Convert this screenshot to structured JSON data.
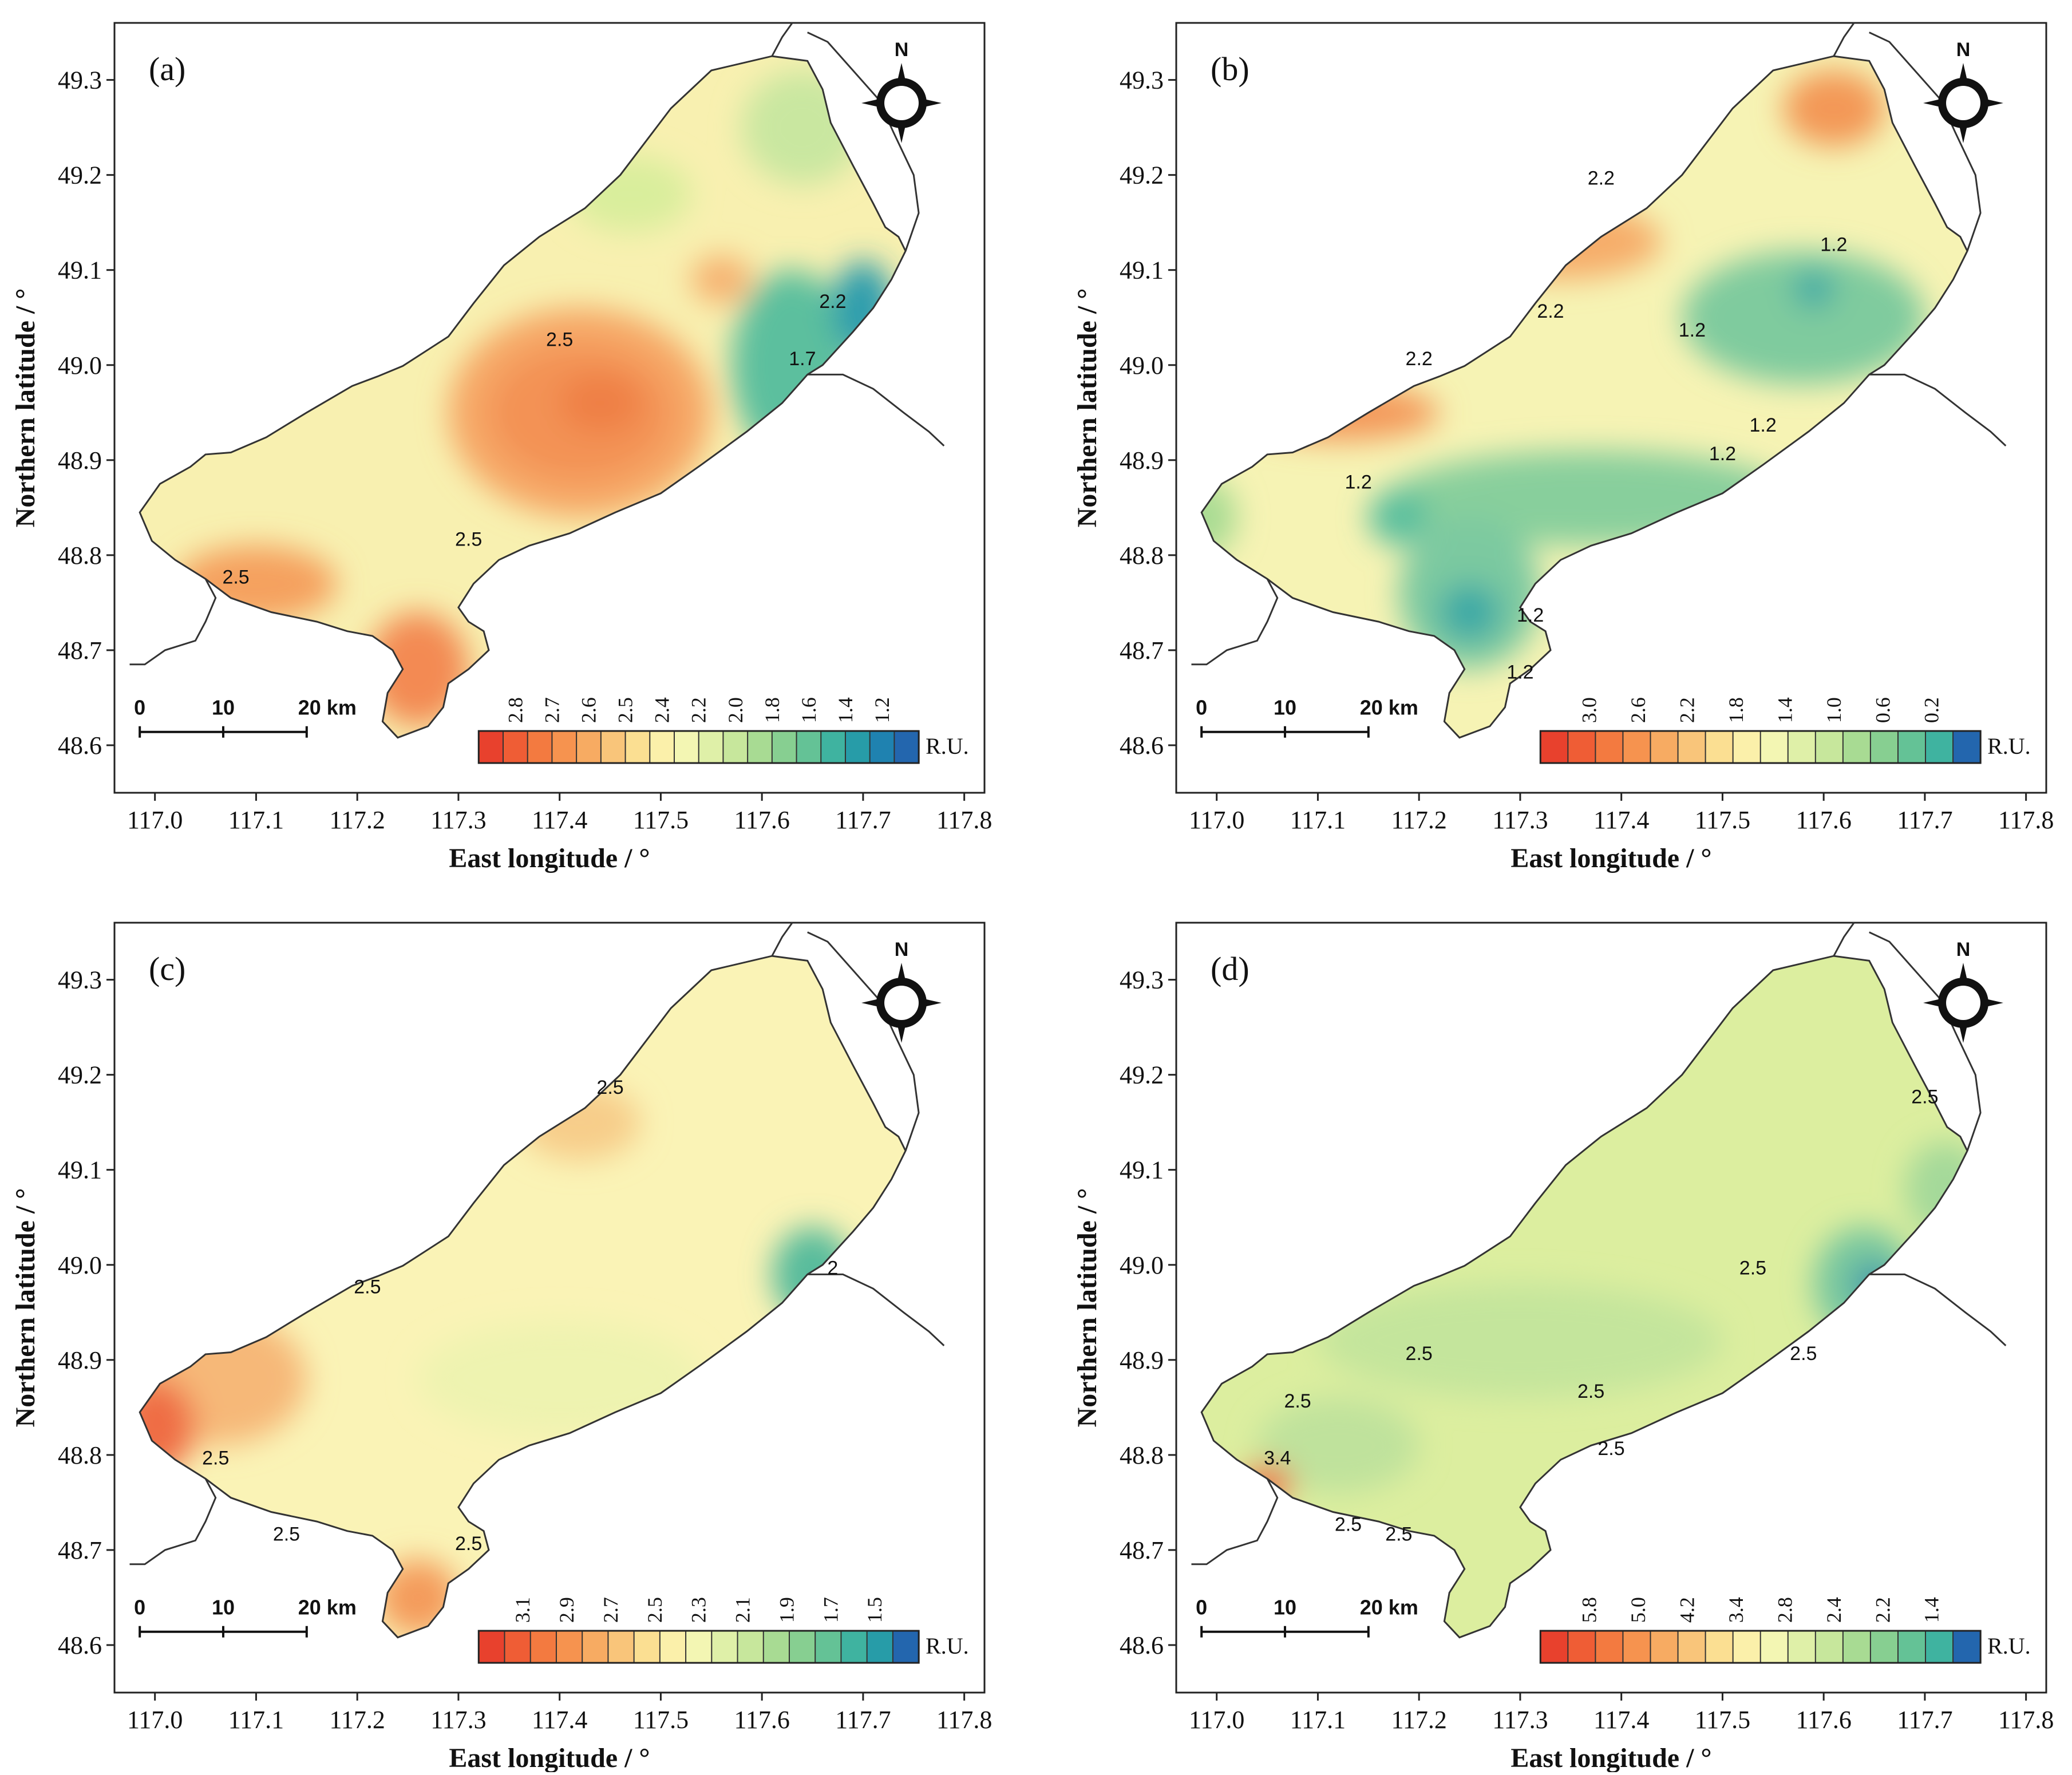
{
  "figure": {
    "axis_x_title": "East longitude / °",
    "axis_y_title": "Northern latitude / °",
    "x_ticks": [
      "117.0",
      "117.1",
      "117.2",
      "117.3",
      "117.4",
      "117.5",
      "117.6",
      "117.7",
      "117.8"
    ],
    "y_ticks": [
      "49.3",
      "49.2",
      "49.1",
      "49.0",
      "48.9",
      "48.8",
      "48.7",
      "48.6"
    ],
    "x_range": [
      116.96,
      117.82
    ],
    "y_range": [
      48.55,
      49.36
    ],
    "compass_label": "N",
    "scale_bar": {
      "labels": [
        "0",
        "10",
        "20 km"
      ]
    },
    "unit_label": "R.U."
  },
  "panels": [
    {
      "id": "a",
      "label": "(a)",
      "colorbar_ticks": [
        "2.8",
        "2.7",
        "2.6",
        "2.5",
        "2.4",
        "2.2",
        "2.0",
        "1.8",
        "1.6",
        "1.4",
        "1.2"
      ],
      "colorbar_colors": [
        "#e8412d",
        "#ef5d35",
        "#f37a40",
        "#f6934f",
        "#f7ab62",
        "#f9c57a",
        "#fbdf92",
        "#fbf0aa",
        "#f3f6b3",
        "#dff0a8",
        "#c7e79c",
        "#a8db93",
        "#87cf91",
        "#64c296",
        "#3fb3a0",
        "#279ca8",
        "#1f82b0",
        "#2366ae"
      ],
      "contour_labels": [
        "2.5",
        "2.5",
        "2.5",
        "2.2",
        "1.7"
      ],
      "base_color": "#f8f0b0",
      "blobs": [
        {
          "lon": 117.42,
          "lat": 48.95,
          "rx": 0.13,
          "ry": 0.11,
          "color": "#f6a766"
        },
        {
          "lon": 117.42,
          "lat": 48.95,
          "rx": 0.09,
          "ry": 0.07,
          "color": "#f39255"
        },
        {
          "lon": 117.44,
          "lat": 48.96,
          "rx": 0.04,
          "ry": 0.03,
          "color": "#ef7f45"
        },
        {
          "lon": 117.56,
          "lat": 49.09,
          "rx": 0.03,
          "ry": 0.025,
          "color": "#f6b170"
        },
        {
          "lon": 117.47,
          "lat": 49.18,
          "rx": 0.06,
          "ry": 0.04,
          "color": "#d9ee9c"
        },
        {
          "lon": 117.64,
          "lat": 49.25,
          "rx": 0.06,
          "ry": 0.06,
          "color": "#c9e7a0"
        },
        {
          "lon": 117.2,
          "lat": 49.11,
          "rx": 0.1,
          "ry": 0.05,
          "color": "#c9e7a0"
        },
        {
          "lon": 117.63,
          "lat": 49.0,
          "rx": 0.06,
          "ry": 0.1,
          "color": "#5bbf9e"
        },
        {
          "lon": 117.7,
          "lat": 49.06,
          "rx": 0.03,
          "ry": 0.05,
          "color": "#2f9dad"
        },
        {
          "lon": 117.1,
          "lat": 48.77,
          "rx": 0.08,
          "ry": 0.04,
          "color": "#f5a15e"
        },
        {
          "lon": 117.26,
          "lat": 48.68,
          "rx": 0.05,
          "ry": 0.06,
          "color": "#f38a52"
        }
      ]
    },
    {
      "id": "b",
      "label": "(b)",
      "colorbar_ticks": [
        "3.0",
        "2.6",
        "2.2",
        "1.8",
        "1.4",
        "1.0",
        "0.6",
        "0.2"
      ],
      "colorbar_colors": [
        "#e8412d",
        "#ef5d35",
        "#f37a40",
        "#f6934f",
        "#f7ab62",
        "#f9c57a",
        "#fbdf92",
        "#fbf0aa",
        "#f3f6b3",
        "#dff0a8",
        "#c7e79c",
        "#a8db93",
        "#87cf91",
        "#64c296",
        "#3fb3a0",
        "#2366ae"
      ],
      "contour_labels": [
        "2.2",
        "2.2",
        "2.2",
        "1.2",
        "1.2",
        "1.2",
        "1.2",
        "1.2",
        "1.2",
        "1.2"
      ],
      "base_color": "#f6f3b4",
      "blobs": [
        {
          "lon": 117.37,
          "lat": 48.86,
          "rx": 0.2,
          "ry": 0.05,
          "color": "#88cf9c"
        },
        {
          "lon": 117.25,
          "lat": 48.76,
          "rx": 0.07,
          "ry": 0.08,
          "color": "#7cc9a0"
        },
        {
          "lon": 117.58,
          "lat": 49.05,
          "rx": 0.12,
          "ry": 0.07,
          "color": "#7fcb9e"
        },
        {
          "lon": 117.25,
          "lat": 48.74,
          "rx": 0.03,
          "ry": 0.03,
          "color": "#3aa9a6"
        },
        {
          "lon": 117.59,
          "lat": 49.08,
          "rx": 0.02,
          "ry": 0.02,
          "color": "#3aa9a6"
        },
        {
          "lon": 117.34,
          "lat": 49.13,
          "rx": 0.1,
          "ry": 0.04,
          "color": "#f6ad6a"
        },
        {
          "lon": 117.12,
          "lat": 48.95,
          "rx": 0.1,
          "ry": 0.03,
          "color": "#f49a5c"
        },
        {
          "lon": 117.61,
          "lat": 49.27,
          "rx": 0.05,
          "ry": 0.04,
          "color": "#f39856"
        },
        {
          "lon": 117.18,
          "lat": 48.84,
          "rx": 0.03,
          "ry": 0.03,
          "color": "#5abf9e"
        },
        {
          "lon": 116.99,
          "lat": 48.84,
          "rx": 0.03,
          "ry": 0.04,
          "color": "#a8db93"
        }
      ]
    },
    {
      "id": "c",
      "label": "(c)",
      "colorbar_ticks": [
        "3.1",
        "2.9",
        "2.7",
        "2.5",
        "2.3",
        "2.1",
        "1.9",
        "1.7",
        "1.5"
      ],
      "colorbar_colors": [
        "#e8412d",
        "#ef5d35",
        "#f37a40",
        "#f6934f",
        "#f7ab62",
        "#f9c57a",
        "#fbdf92",
        "#fbf0aa",
        "#f3f6b3",
        "#dff0a8",
        "#c7e79c",
        "#a8db93",
        "#87cf91",
        "#64c296",
        "#3fb3a0",
        "#279ca8",
        "#2366ae"
      ],
      "contour_labels": [
        "2.5",
        "2.5",
        "2.5",
        "2.5",
        "2.5",
        "2"
      ],
      "base_color": "#faf3b6",
      "blobs": [
        {
          "lon": 117.06,
          "lat": 48.88,
          "rx": 0.09,
          "ry": 0.07,
          "color": "#f6b878"
        },
        {
          "lon": 117.0,
          "lat": 48.83,
          "rx": 0.04,
          "ry": 0.05,
          "color": "#ef6d45"
        },
        {
          "lon": 117.4,
          "lat": 48.88,
          "rx": 0.14,
          "ry": 0.06,
          "color": "#eef3b0"
        },
        {
          "lon": 117.65,
          "lat": 48.99,
          "rx": 0.04,
          "ry": 0.05,
          "color": "#58bc9c"
        },
        {
          "lon": 117.26,
          "lat": 48.65,
          "rx": 0.04,
          "ry": 0.04,
          "color": "#f49b5c"
        },
        {
          "lon": 117.42,
          "lat": 49.15,
          "rx": 0.06,
          "ry": 0.04,
          "color": "#f7cd8a"
        }
      ]
    },
    {
      "id": "d",
      "label": "(d)",
      "colorbar_ticks": [
        "5.8",
        "5.0",
        "4.2",
        "3.4",
        "2.8",
        "2.4",
        "2.2",
        "1.4"
      ],
      "colorbar_colors": [
        "#e8412d",
        "#ef5d35",
        "#f37a40",
        "#f6934f",
        "#f7ab62",
        "#f9c57a",
        "#fbdf92",
        "#fbf0aa",
        "#f3f6b3",
        "#dff0a8",
        "#c7e79c",
        "#a8db93",
        "#87cf91",
        "#64c296",
        "#3fb3a0",
        "#2366ae"
      ],
      "contour_labels": [
        "2.5",
        "2.5",
        "2.5",
        "2.5",
        "2.5",
        "2.5",
        "2.5",
        "2.5",
        "2.5",
        "3.4"
      ],
      "base_color": "#dcee9f",
      "blobs": [
        {
          "lon": 117.3,
          "lat": 48.92,
          "rx": 0.2,
          "ry": 0.06,
          "color": "#c4e59c"
        },
        {
          "lon": 117.12,
          "lat": 48.81,
          "rx": 0.08,
          "ry": 0.05,
          "color": "#bfe29c"
        },
        {
          "lon": 117.64,
          "lat": 48.98,
          "rx": 0.05,
          "ry": 0.06,
          "color": "#78c79f"
        },
        {
          "lon": 117.65,
          "lat": 48.98,
          "rx": 0.02,
          "ry": 0.02,
          "color": "#2d90ad"
        },
        {
          "lon": 117.72,
          "lat": 49.08,
          "rx": 0.04,
          "ry": 0.05,
          "color": "#a4d99a"
        },
        {
          "lon": 117.05,
          "lat": 48.77,
          "rx": 0.025,
          "ry": 0.02,
          "color": "#ef6a3f"
        }
      ]
    }
  ]
}
